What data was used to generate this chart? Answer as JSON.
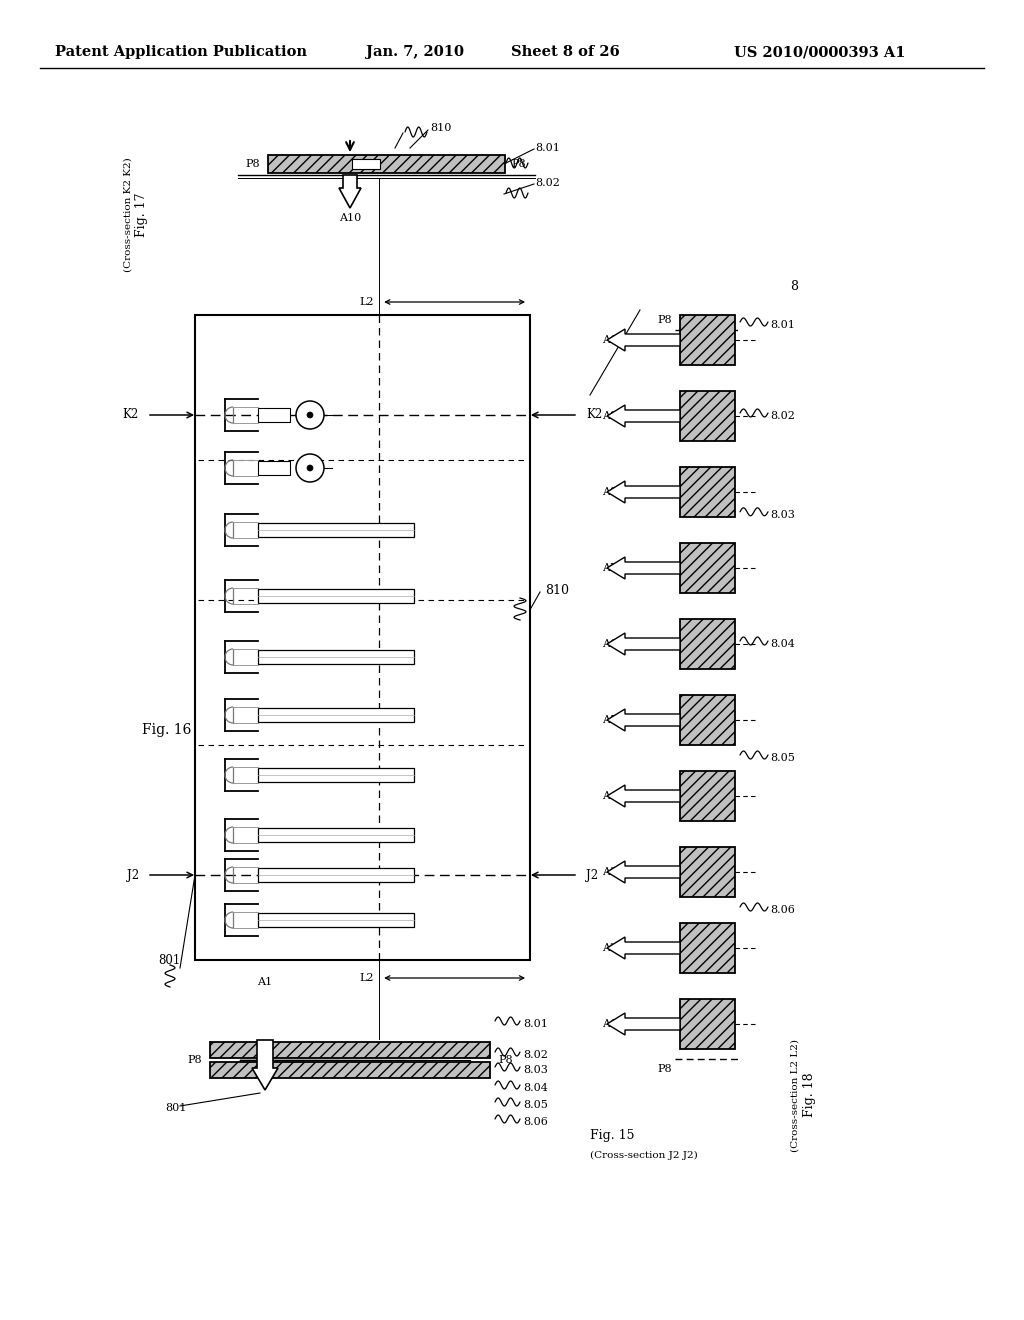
{
  "bg_color": "#ffffff",
  "header_text": "Patent Application Publication",
  "header_date": "Jan. 7, 2010",
  "header_sheet": "Sheet 8 of 26",
  "header_patent": "US 2010/0000393 A1"
}
